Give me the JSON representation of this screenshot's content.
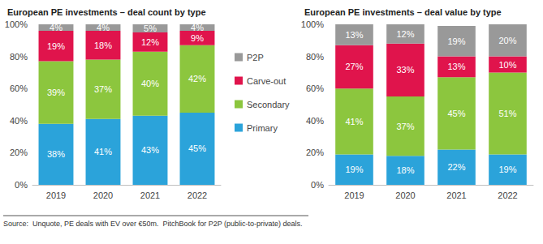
{
  "chart_data": [
    {
      "type": "bar",
      "title": "European PE investments – deal count by type",
      "categories": [
        "2019",
        "2020",
        "2021",
        "2022"
      ],
      "stacked": true,
      "data_labels": true,
      "grid": false,
      "legend": "right",
      "ylim": [
        0,
        100
      ],
      "yticks": [
        {
          "value": 0,
          "label": "0%"
        },
        {
          "value": 20,
          "label": "20%"
        },
        {
          "value": 40,
          "label": "40%"
        },
        {
          "value": 60,
          "label": "60%"
        },
        {
          "value": 80,
          "label": "80%"
        },
        {
          "value": 100,
          "label": "100%"
        }
      ],
      "series": [
        {
          "name": "Primary",
          "color": "#2ba3da",
          "values": [
            38,
            41,
            43,
            45
          ],
          "value_labels": [
            "38%",
            "41%",
            "43%",
            "45%"
          ]
        },
        {
          "name": "Secondary",
          "color": "#8cc63e",
          "values": [
            39,
            37,
            40,
            42
          ],
          "value_labels": [
            "39%",
            "37%",
            "40%",
            "42%"
          ]
        },
        {
          "name": "Carve-out",
          "color": "#e0144c",
          "values": [
            19,
            18,
            12,
            9
          ],
          "value_labels": [
            "19%",
            "18%",
            "12%",
            "9%"
          ]
        },
        {
          "name": "P2P",
          "color": "#999999",
          "values": [
            4,
            4,
            5,
            4
          ],
          "value_labels": [
            "4%",
            "4%",
            "5%",
            "4%"
          ]
        }
      ]
    },
    {
      "type": "bar",
      "title": "European PE investments – deal value by type",
      "categories": [
        "2019",
        "2020",
        "2021",
        "2022"
      ],
      "stacked": true,
      "data_labels": true,
      "grid": false,
      "ylim": [
        0,
        100
      ],
      "yticks": [
        {
          "value": 0,
          "label": "0%"
        },
        {
          "value": 20,
          "label": "20%"
        },
        {
          "value": 40,
          "label": "40%"
        },
        {
          "value": 60,
          "label": "60%"
        },
        {
          "value": 80,
          "label": "80%"
        },
        {
          "value": 100,
          "label": "100%"
        }
      ],
      "series": [
        {
          "name": "Primary",
          "color": "#2ba3da",
          "values": [
            19,
            18,
            22,
            19
          ],
          "value_labels": [
            "19%",
            "18%",
            "22%",
            "19%"
          ]
        },
        {
          "name": "Secondary",
          "color": "#8cc63e",
          "values": [
            41,
            37,
            45,
            51
          ],
          "value_labels": [
            "41%",
            "37%",
            "45%",
            "51%"
          ]
        },
        {
          "name": "Carve-out",
          "color": "#e0144c",
          "values": [
            27,
            33,
            13,
            10
          ],
          "value_labels": [
            "27%",
            "33%",
            "13%",
            "10%"
          ]
        },
        {
          "name": "P2P",
          "color": "#999999",
          "values": [
            13,
            12,
            19,
            20
          ],
          "value_labels": [
            "13%",
            "12%",
            "19%",
            "20%"
          ]
        }
      ]
    }
  ],
  "source": "Source:  Unquote, PE deals with EV over €50m.  PitchBook for P2P (public-to-private) deals."
}
